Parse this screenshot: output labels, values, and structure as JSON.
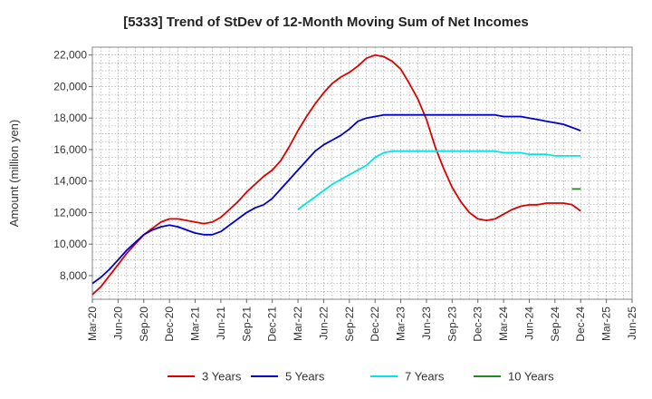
{
  "chart_data": {
    "type": "line",
    "title": "[5333]  Trend of StDev of 12-Month Moving Sum of Net Incomes",
    "xlabel": "",
    "ylabel": "Amount (million yen)",
    "ylim": [
      6500,
      22500
    ],
    "yticks": [
      8000,
      10000,
      12000,
      14000,
      16000,
      18000,
      20000,
      22000
    ],
    "ytick_labels": [
      "8,000",
      "10,000",
      "12,000",
      "14,000",
      "16,000",
      "18,000",
      "20,000",
      "22,000"
    ],
    "xtick_labels": [
      "Mar-20",
      "Jun-20",
      "Sep-20",
      "Dec-20",
      "Mar-21",
      "Jun-21",
      "Sep-21",
      "Dec-21",
      "Mar-22",
      "Jun-22",
      "Sep-22",
      "Dec-22",
      "Mar-23",
      "Jun-23",
      "Sep-23",
      "Dec-23",
      "Mar-24",
      "Jun-24",
      "Sep-24",
      "Dec-24",
      "Mar-25",
      "Jun-25"
    ],
    "grid": true,
    "legend_position": "bottom",
    "series": [
      {
        "name": "3 Years",
        "color": "#dd0000",
        "start_index": 0,
        "values": [
          6800,
          7300,
          8000,
          8700,
          9400,
          10000,
          10600,
          11000,
          11400,
          11600,
          11600,
          11500,
          11400,
          11300,
          11400,
          11700,
          12200,
          12700,
          13300,
          13800,
          14300,
          14700,
          15300,
          16200,
          17200,
          18100,
          18900,
          19600,
          20200,
          20600,
          20900,
          21300,
          21800,
          22000,
          21900,
          21600,
          21100,
          20200,
          19200,
          17900,
          16200,
          14800,
          13600,
          12700,
          12000,
          11600,
          11500,
          11600,
          11900,
          12200,
          12400,
          12500,
          12500,
          12600,
          12600,
          12600,
          12500,
          12100
        ]
      },
      {
        "name": "5 Years",
        "color": "#0000cc",
        "start_index": 0,
        "values": [
          7500,
          7900,
          8400,
          9000,
          9600,
          10100,
          10600,
          10900,
          11100,
          11200,
          11100,
          10900,
          10700,
          10600,
          10600,
          10800,
          11200,
          11600,
          12000,
          12300,
          12500,
          12900,
          13500,
          14100,
          14700,
          15300,
          15900,
          16300,
          16600,
          16900,
          17300,
          17800,
          18000,
          18100,
          18200,
          18200,
          18200,
          18200,
          18200,
          18200,
          18200,
          18200,
          18200,
          18200,
          18200,
          18200,
          18200,
          18200,
          18100,
          18100,
          18100,
          18000,
          17900,
          17800,
          17700,
          17600,
          17400,
          17200
        ]
      },
      {
        "name": "7 Years",
        "color": "#00e5e5",
        "start_index": 24,
        "values": [
          12200,
          12600,
          13000,
          13400,
          13800,
          14100,
          14400,
          14700,
          15000,
          15500,
          15800,
          15900,
          15900,
          15900,
          15900,
          15900,
          15900,
          15900,
          15900,
          15900,
          15900,
          15900,
          15900,
          15900,
          15800,
          15800,
          15800,
          15700,
          15700,
          15700,
          15600,
          15600,
          15600,
          15600
        ]
      },
      {
        "name": "10 Years",
        "color": "#228b22",
        "start_index": 56,
        "values": [
          13500,
          13500
        ]
      }
    ]
  }
}
